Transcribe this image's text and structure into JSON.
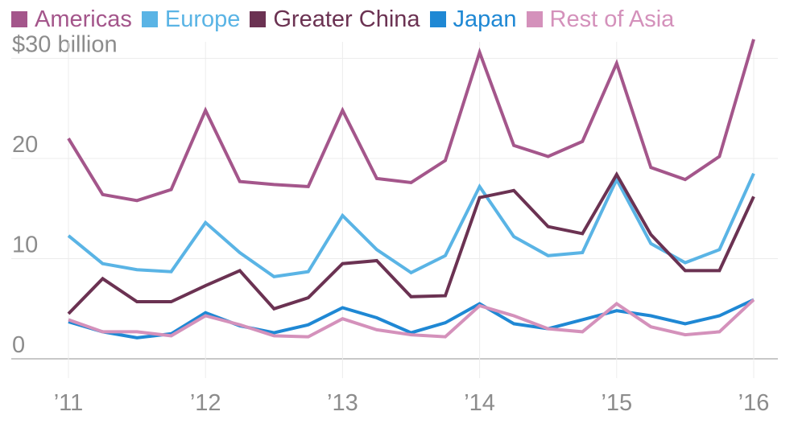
{
  "chart_data": {
    "type": "line",
    "title": "",
    "xlabel": "",
    "ylabel": "",
    "y_unit_label": "$30 billion",
    "ylim": [
      0,
      32
    ],
    "y_ticks": [
      0,
      10,
      20,
      30
    ],
    "y_tick_labels": [
      "0",
      "10",
      "20",
      "$30 billion"
    ],
    "x_tick_labels": [
      "’11",
      "’12",
      "’13",
      "’14",
      "’15",
      "’16"
    ],
    "x_tick_quarter_index": [
      0,
      4,
      8,
      12,
      16,
      20
    ],
    "quarters": 21,
    "legend_position": "top-left",
    "series": [
      {
        "name": "Americas",
        "color": "#a4568b",
        "values": [
          22.0,
          16.4,
          15.8,
          16.9,
          24.8,
          17.7,
          17.4,
          17.2,
          24.8,
          18.0,
          17.6,
          19.8,
          30.6,
          21.3,
          20.2,
          21.7,
          29.5,
          19.1,
          17.9,
          20.2,
          31.9
        ]
      },
      {
        "name": "Europe",
        "color": "#5ab4e5",
        "values": [
          12.3,
          9.5,
          8.9,
          8.7,
          13.6,
          10.6,
          8.2,
          8.7,
          14.3,
          10.9,
          8.6,
          10.3,
          17.2,
          12.2,
          10.3,
          10.6,
          17.9,
          11.5,
          9.6,
          10.9,
          18.5
        ]
      },
      {
        "name": "Greater China",
        "color": "#6b3252",
        "values": [
          4.5,
          8.0,
          5.7,
          5.7,
          7.3,
          8.8,
          5.0,
          6.1,
          9.5,
          9.8,
          6.2,
          6.3,
          16.1,
          16.8,
          13.2,
          12.5,
          18.4,
          12.4,
          8.8,
          8.8,
          16.2
        ]
      },
      {
        "name": "Japan",
        "color": "#1f88d4",
        "values": [
          3.7,
          2.7,
          2.1,
          2.5,
          4.6,
          3.3,
          2.6,
          3.4,
          5.1,
          4.1,
          2.6,
          3.6,
          5.5,
          3.5,
          3.0,
          3.9,
          4.8,
          4.3,
          3.5,
          4.3,
          5.9
        ]
      },
      {
        "name": "Rest of Asia",
        "color": "#d491bb",
        "values": [
          3.9,
          2.7,
          2.7,
          2.3,
          4.3,
          3.4,
          2.3,
          2.2,
          4.0,
          2.9,
          2.4,
          2.2,
          5.3,
          4.3,
          3.0,
          2.7,
          5.5,
          3.2,
          2.4,
          2.7,
          5.9
        ]
      }
    ]
  }
}
